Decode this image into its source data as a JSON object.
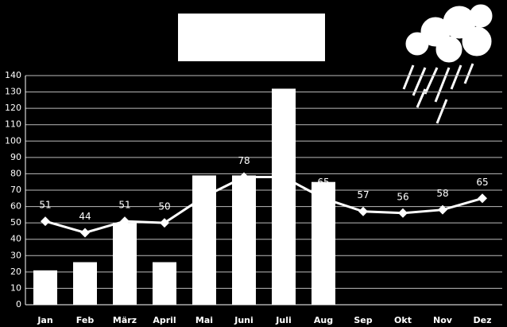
{
  "chart_data": {
    "type": "bar",
    "categories": [
      "Jan",
      "Feb",
      "März",
      "April",
      "Mai",
      "Juni",
      "Juli",
      "Aug",
      "Sep",
      "Okt",
      "Nov",
      "Dez"
    ],
    "series": [
      {
        "type": "bar",
        "color": "#ffffff",
        "values": [
          21,
          26,
          50,
          26,
          79,
          79,
          132,
          75,
          null,
          null,
          null,
          null
        ]
      },
      {
        "type": "line",
        "color": "#ffffff",
        "values": [
          51,
          44,
          51,
          50,
          66,
          78,
          78,
          65,
          57,
          56,
          58,
          65
        ],
        "value_labels": [
          "51",
          "44",
          "51",
          "50",
          null,
          "78",
          null,
          "65",
          "57",
          "56",
          "58",
          "65"
        ]
      }
    ],
    "ylim": [
      0,
      140
    ],
    "yticks": [
      0,
      10,
      20,
      30,
      40,
      50,
      60,
      70,
      80,
      90,
      100,
      110,
      120,
      130,
      140
    ],
    "grid": true
  }
}
